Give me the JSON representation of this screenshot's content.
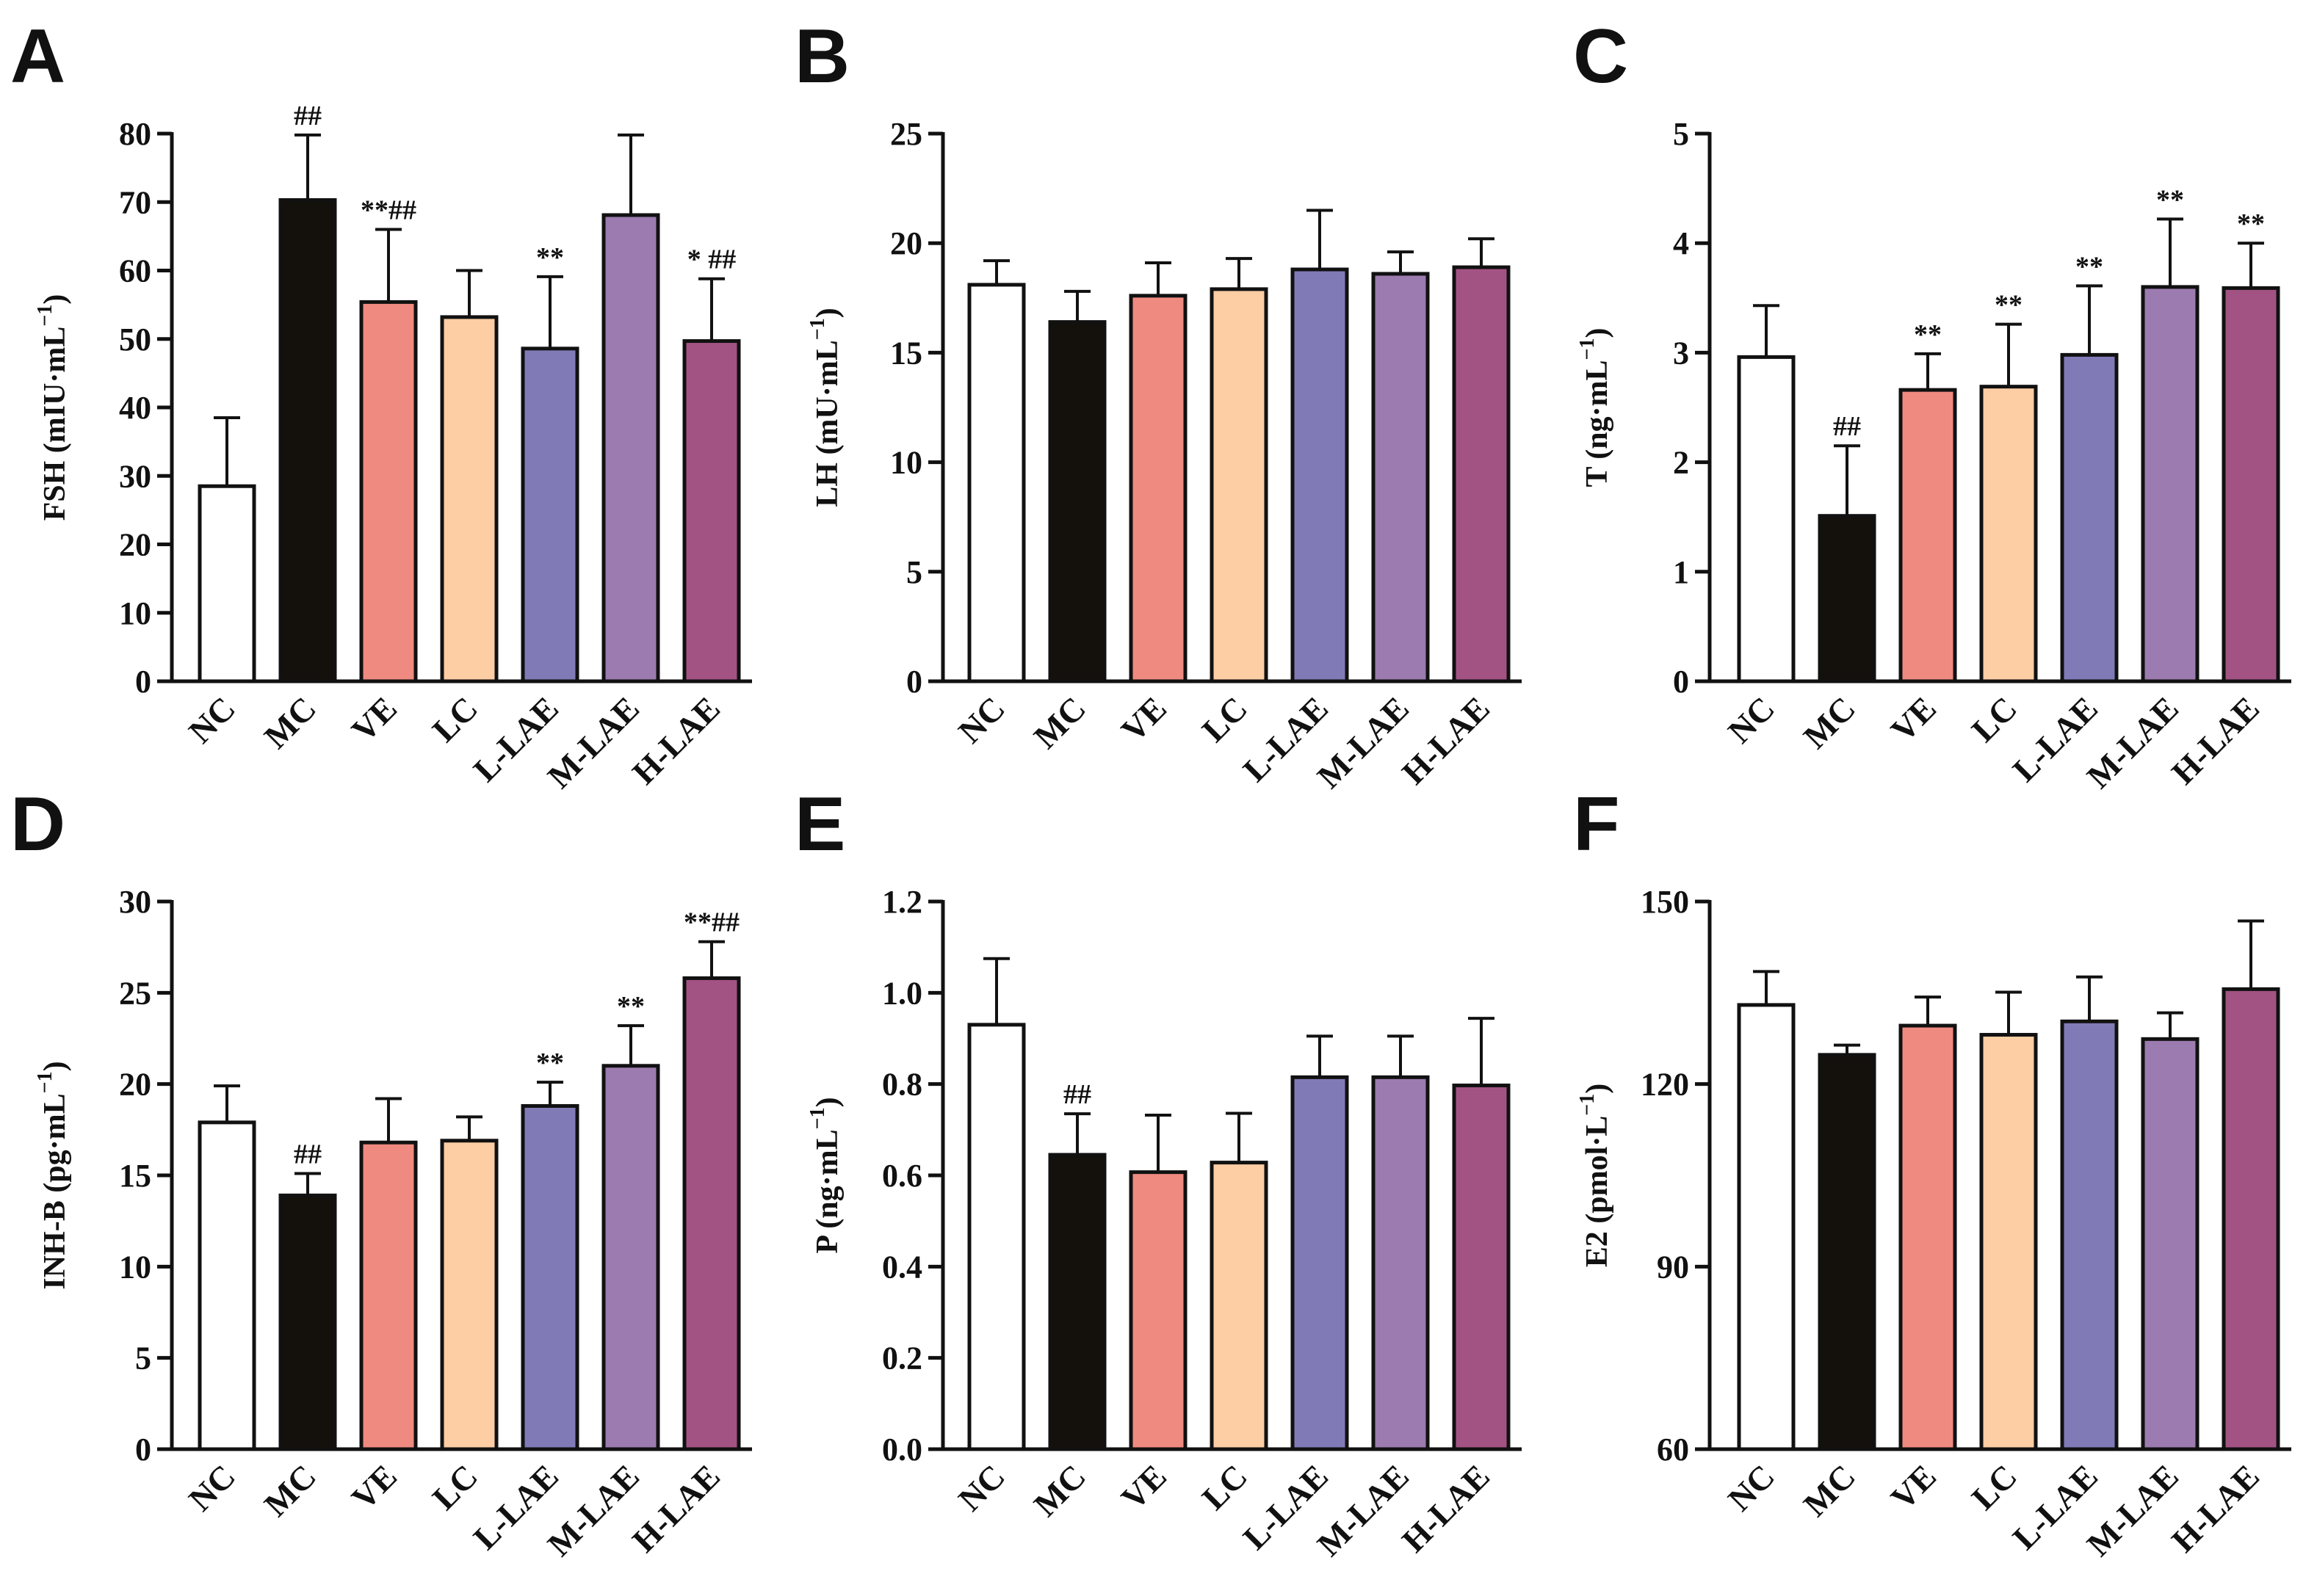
{
  "colors": {
    "NC": "#ffffff",
    "MC": "#14100c",
    "VE": "#ef8a80",
    "LC": "#fdcda4",
    "L-LAE": "#807bb7",
    "M-LAE": "#9b7bb0",
    "H-LAE": "#a25383"
  },
  "chart_data": [
    {
      "type": "bar",
      "panel": "A",
      "ylabel": "FSH (mIU·mL",
      "ylabel_sup": "−1",
      "ylabel_suffix": ")",
      "ylim": [
        0,
        80
      ],
      "yticks": [
        0,
        10,
        20,
        30,
        40,
        50,
        60,
        70,
        80
      ],
      "categories": [
        "NC",
        "MC",
        "VE",
        "LC",
        "L-LAE",
        "M-LAE",
        "H-LAE"
      ],
      "values": [
        28.5,
        70.3,
        55.4,
        53.2,
        48.6,
        68.1,
        49.7
      ],
      "errors": [
        10.0,
        9.5,
        10.6,
        6.8,
        10.5,
        11.7,
        9.1
      ],
      "annotations": [
        "",
        "##",
        "**##",
        "",
        "**",
        "",
        "* ##"
      ]
    },
    {
      "type": "bar",
      "panel": "B",
      "ylabel": "LH (mU·mL",
      "ylabel_sup": "−1",
      "ylabel_suffix": ")",
      "ylim": [
        0,
        25
      ],
      "yticks": [
        0,
        5,
        10,
        15,
        20,
        25
      ],
      "categories": [
        "NC",
        "MC",
        "VE",
        "LC",
        "L-LAE",
        "M-LAE",
        "H-LAE"
      ],
      "values": [
        18.1,
        16.4,
        17.6,
        17.9,
        18.8,
        18.6,
        18.9
      ],
      "errors": [
        1.1,
        1.4,
        1.5,
        1.4,
        2.7,
        1.0,
        1.3
      ],
      "annotations": [
        "",
        "",
        "",
        "",
        "",
        "",
        ""
      ]
    },
    {
      "type": "bar",
      "panel": "C",
      "ylabel": "T (ng·mL",
      "ylabel_sup": "−1",
      "ylabel_suffix": ")",
      "ylim": [
        0,
        5
      ],
      "yticks": [
        0,
        1,
        2,
        3,
        4,
        5
      ],
      "categories": [
        "NC",
        "MC",
        "VE",
        "LC",
        "L-LAE",
        "M-LAE",
        "H-LAE"
      ],
      "values": [
        2.96,
        1.51,
        2.66,
        2.69,
        2.98,
        3.6,
        3.59
      ],
      "errors": [
        0.47,
        0.64,
        0.33,
        0.57,
        0.63,
        0.62,
        0.41
      ],
      "annotations": [
        "",
        "##",
        "**",
        "**",
        "**",
        "**",
        "**"
      ]
    },
    {
      "type": "bar",
      "panel": "D",
      "ylabel": "INH-B (pg·mL",
      "ylabel_sup": "−1",
      "ylabel_suffix": ")",
      "ylim": [
        0,
        30
      ],
      "yticks": [
        0,
        5,
        10,
        15,
        20,
        25,
        30
      ],
      "categories": [
        "NC",
        "MC",
        "VE",
        "LC",
        "L-LAE",
        "M-LAE",
        "H-LAE"
      ],
      "values": [
        17.9,
        13.9,
        16.8,
        16.9,
        18.8,
        21.0,
        25.8
      ],
      "errors": [
        2.0,
        1.2,
        2.4,
        1.3,
        1.3,
        2.2,
        2.0
      ],
      "annotations": [
        "",
        "##",
        "",
        "",
        "**",
        "**",
        "**##"
      ]
    },
    {
      "type": "bar",
      "panel": "E",
      "ylabel": "P (ng·mL",
      "ylabel_sup": "−1",
      "ylabel_suffix": ")",
      "ylim": [
        0,
        1.2
      ],
      "yticks": [
        "0.0",
        "0.2",
        "0.4",
        "0.6",
        "0.8",
        "1.0",
        "1.2"
      ],
      "categories": [
        "NC",
        "MC",
        "VE",
        "LC",
        "L-LAE",
        "M-LAE",
        "H-LAE"
      ],
      "values": [
        0.93,
        0.645,
        0.607,
        0.628,
        0.815,
        0.815,
        0.797
      ],
      "errors": [
        0.145,
        0.09,
        0.125,
        0.108,
        0.09,
        0.09,
        0.147
      ],
      "annotations": [
        "",
        "##",
        "",
        "",
        "",
        "",
        ""
      ]
    },
    {
      "type": "bar",
      "panel": "F",
      "ylabel": "E2 (pmol·L",
      "ylabel_sup": "−1",
      "ylabel_suffix": ")",
      "ylim": [
        60,
        150
      ],
      "yticks": [
        60,
        90,
        120,
        150
      ],
      "categories": [
        "NC",
        "MC",
        "VE",
        "LC",
        "L-LAE",
        "M-LAE",
        "H-LAE"
      ],
      "values": [
        133.0,
        124.8,
        129.6,
        128.1,
        130.3,
        127.4,
        135.6
      ],
      "errors": [
        5.5,
        1.6,
        4.7,
        7.0,
        7.3,
        4.3,
        11.2
      ],
      "annotations": [
        "",
        "",
        "",
        "",
        "",
        "",
        ""
      ]
    }
  ]
}
